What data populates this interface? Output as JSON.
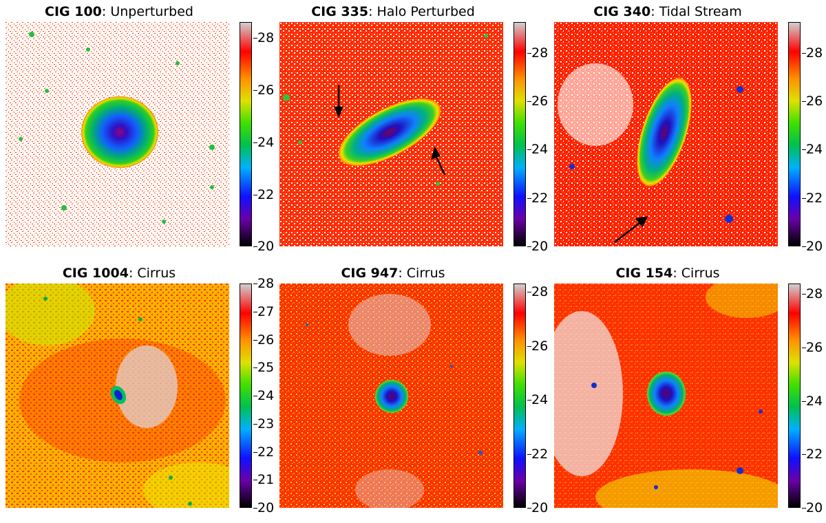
{
  "panels": [
    {
      "title_bold": "CIG 100",
      "title_rest": ": Unperturbed",
      "cbar_ticks": [
        "28",
        "26",
        "24",
        "22",
        "20"
      ],
      "cbar_range": [
        20,
        28.6
      ]
    },
    {
      "title_bold": "CIG 335",
      "title_rest": ": Halo Perturbed",
      "cbar_ticks": [
        "28",
        "26",
        "24",
        "22",
        "20"
      ],
      "cbar_range": [
        20,
        29.3
      ]
    },
    {
      "title_bold": "CIG 340",
      "title_rest": ": Tidal Stream",
      "cbar_ticks": [
        "28",
        "26",
        "24",
        "22",
        "20"
      ],
      "cbar_range": [
        20,
        29.3
      ]
    },
    {
      "title_bold": "CIG 1004",
      "title_rest": ": Cirrus",
      "cbar_ticks": [
        "28",
        "27",
        "26",
        "25",
        "24",
        "23",
        "22",
        "21",
        "20"
      ],
      "cbar_range": [
        20,
        28
      ]
    },
    {
      "title_bold": "CIG 947",
      "title_rest": ": Cirrus",
      "cbar_ticks": [
        "28",
        "26",
        "24",
        "22",
        "20"
      ],
      "cbar_range": [
        20,
        28.3
      ]
    },
    {
      "title_bold": "CIG 154",
      "title_rest": ": Cirrus",
      "cbar_ticks": [
        "28",
        "26",
        "24",
        "22",
        "20"
      ],
      "cbar_range": [
        20,
        28.4
      ]
    }
  ],
  "colormap": [
    "#000000",
    "#6a00a8",
    "#1010ff",
    "#00b0ff",
    "#00c050",
    "#40e000",
    "#e0e000",
    "#ff9000",
    "#ff0000",
    "#d0d0d0"
  ],
  "arrow_color": "#000000"
}
